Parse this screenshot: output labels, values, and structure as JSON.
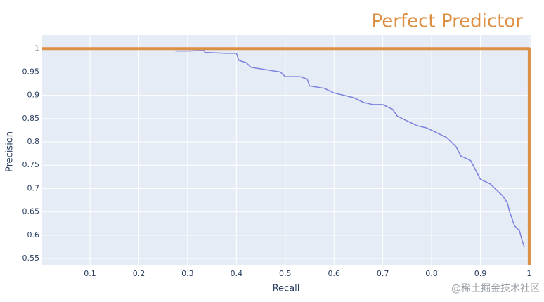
{
  "chart_data": {
    "type": "line",
    "x_label": "Recall",
    "y_label": "Precision",
    "xlim": [
      0.002,
      1.003
    ],
    "ylim": [
      0.535,
      1.029
    ],
    "xticks": [
      0.1,
      0.2,
      0.3,
      0.4,
      0.5,
      0.6,
      0.7,
      0.8,
      0.9,
      1
    ],
    "yticks": [
      0.55,
      0.6,
      0.65,
      0.7,
      0.75,
      0.8,
      0.85,
      0.9,
      0.95,
      1
    ],
    "grid": true,
    "series": [
      {
        "color": "#7b80dc",
        "width": 1.5,
        "x": [
          0.275,
          0.3,
          0.335,
          0.335,
          0.38,
          0.4,
          0.405,
          0.42,
          0.43,
          0.46,
          0.49,
          0.5,
          0.53,
          0.545,
          0.55,
          0.58,
          0.6,
          0.62,
          0.64,
          0.66,
          0.68,
          0.7,
          0.72,
          0.73,
          0.75,
          0.77,
          0.79,
          0.81,
          0.83,
          0.84,
          0.85,
          0.86,
          0.88,
          0.89,
          0.9,
          0.92,
          0.93,
          0.945,
          0.955,
          0.96,
          0.97,
          0.98,
          0.985,
          0.99
        ],
        "values": [
          0.995,
          0.995,
          0.996,
          0.992,
          0.99,
          0.99,
          0.975,
          0.97,
          0.96,
          0.955,
          0.95,
          0.94,
          0.94,
          0.935,
          0.92,
          0.915,
          0.905,
          0.9,
          0.895,
          0.885,
          0.88,
          0.88,
          0.87,
          0.855,
          0.845,
          0.835,
          0.83,
          0.82,
          0.81,
          0.8,
          0.79,
          0.77,
          0.76,
          0.74,
          0.72,
          0.71,
          0.7,
          0.685,
          0.67,
          0.65,
          0.62,
          0.61,
          0.59,
          0.575
        ]
      },
      {
        "name": "Perfect Predictor",
        "color": "#dd8f43",
        "width": 4,
        "x": [
          0,
          1,
          1
        ],
        "values": [
          1,
          1,
          0.53
        ]
      }
    ]
  },
  "watermark": "@稀土掘金技术社区"
}
